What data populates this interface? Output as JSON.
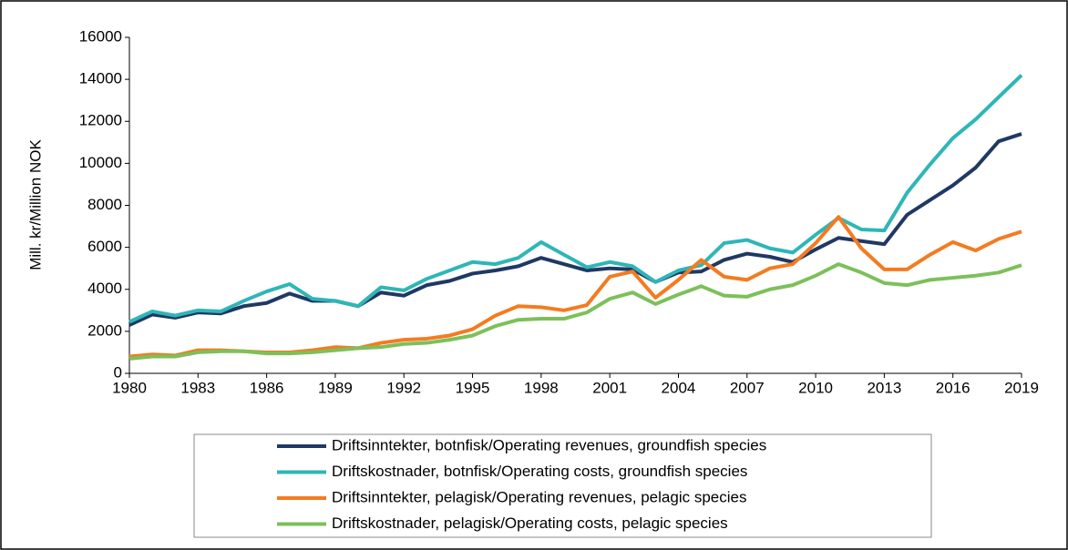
{
  "chart_data": {
    "type": "line",
    "y_label": "Mill. kr/Million NOK",
    "x": [
      1980,
      1981,
      1982,
      1983,
      1984,
      1985,
      1986,
      1987,
      1988,
      1989,
      1990,
      1991,
      1992,
      1993,
      1994,
      1995,
      1996,
      1997,
      1998,
      1999,
      2000,
      2001,
      2002,
      2003,
      2004,
      2005,
      2006,
      2007,
      2008,
      2009,
      2010,
      2011,
      2012,
      2013,
      2014,
      2015,
      2016,
      2017,
      2018,
      2019
    ],
    "xlim": [
      1980,
      2019
    ],
    "xticks": [
      1980,
      1983,
      1986,
      1989,
      1992,
      1995,
      1998,
      2001,
      2004,
      2007,
      2010,
      2013,
      2016,
      2019
    ],
    "ylim": [
      0,
      16000
    ],
    "yticks": [
      0,
      2000,
      4000,
      6000,
      8000,
      10000,
      12000,
      14000,
      16000
    ],
    "grid": false,
    "legend": "bottom",
    "series": [
      {
        "name": "Driftsinntekter, botnfisk/Operating revenues, groundfish species",
        "color": "#1f3864",
        "values": [
          2300,
          2800,
          2650,
          2900,
          2850,
          3200,
          3350,
          3800,
          3450,
          3450,
          3200,
          3850,
          3700,
          4200,
          4400,
          4750,
          4900,
          5100,
          5500,
          5200,
          4900,
          5000,
          4950,
          4350,
          4800,
          4850,
          5400,
          5700,
          5550,
          5300,
          5900,
          6450,
          6300,
          6150,
          7550,
          8250,
          8950,
          9800,
          11050,
          11400
        ]
      },
      {
        "name": "Driftskostnader, botnfisk/Operating costs, groundfish species",
        "color": "#2eb6b8",
        "values": [
          2450,
          2950,
          2750,
          3000,
          2950,
          3450,
          3900,
          4250,
          3550,
          3450,
          3200,
          4100,
          3950,
          4500,
          4900,
          5300,
          5200,
          5500,
          6250,
          5650,
          5050,
          5300,
          5100,
          4350,
          4900,
          5150,
          6200,
          6350,
          5950,
          5750,
          6600,
          7400,
          6850,
          6800,
          8600,
          9950,
          11200,
          12100,
          13150,
          14200
        ]
      },
      {
        "name": "Driftsinntekter, pelagisk/Operating revenues, pelagic species",
        "color": "#f47b20",
        "values": [
          800,
          900,
          850,
          1100,
          1100,
          1050,
          1000,
          1000,
          1100,
          1250,
          1200,
          1450,
          1600,
          1650,
          1800,
          2100,
          2750,
          3200,
          3150,
          3000,
          3250,
          4600,
          4850,
          3600,
          4450,
          5400,
          4600,
          4450,
          5000,
          5200,
          6200,
          7450,
          5950,
          4950,
          4950,
          5650,
          6250,
          5850,
          6400,
          6750
        ]
      },
      {
        "name": "Driftskostnader, pelagisk/Operating costs, pelagic species",
        "color": "#7cc05a",
        "values": [
          700,
          800,
          800,
          1000,
          1050,
          1050,
          950,
          950,
          1000,
          1100,
          1200,
          1250,
          1400,
          1450,
          1600,
          1800,
          2250,
          2550,
          2600,
          2600,
          2900,
          3550,
          3850,
          3300,
          3750,
          4150,
          3700,
          3650,
          4000,
          4200,
          4650,
          5200,
          4800,
          4300,
          4200,
          4450,
          4550,
          4650,
          4800,
          5150
        ]
      }
    ]
  }
}
